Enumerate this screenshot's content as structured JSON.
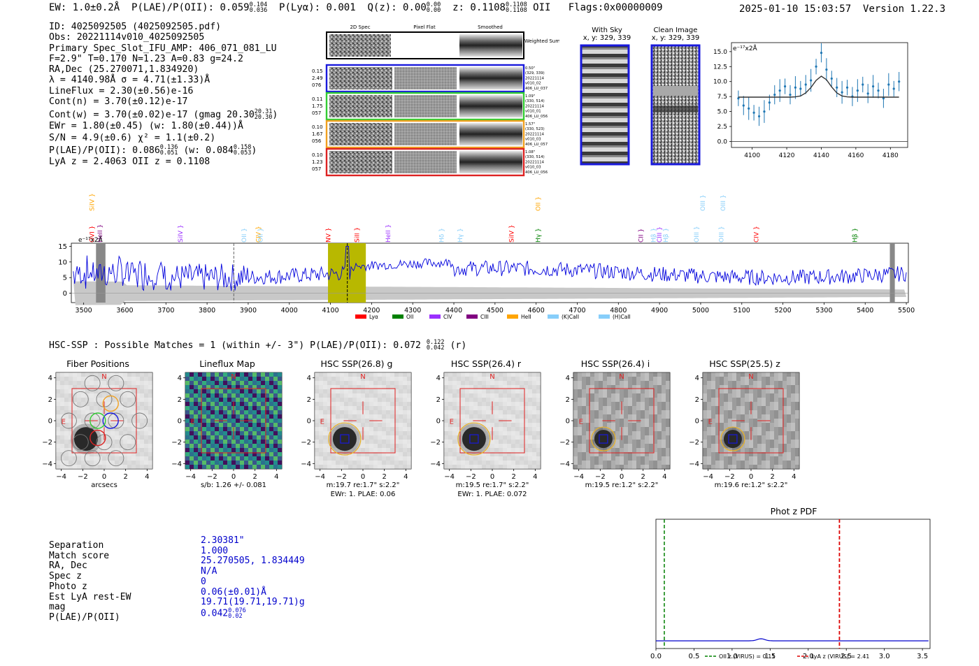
{
  "header": {
    "ew": "EW: 1.0±0.2Å",
    "plae": "P(LAE)/P(OII): 0.059",
    "plae_hi": "0.104",
    "plae_lo": "0.036",
    "plya": "P(Lyα): 0.001",
    "qz": "Q(z): 0.00",
    "qz_hi": "0.00",
    "qz_lo": "0.00",
    "z": "z: 0.1108",
    "z_hi": "0.1108",
    "z_lo": "0.1108",
    "z_line": "OII",
    "flags": "Flags:0x00000009",
    "datetime": "2025-01-10 15:03:57",
    "version": "Version 1.22.3"
  },
  "info": {
    "l1": "ID: 4025092505 (4025092505.pdf)",
    "l2": "Obs: 20221114v010_4025092505",
    "l3": "Primary Spec_Slot_IFU_AMP: 406_071_081_LU",
    "l4": "F=2.9\"  T=0.170  N=1.23  A=0.83  g=24.2",
    "l5": "RA,Dec (25.270071,1.834920)",
    "l6": "λ = 4140.98Å  σ = 4.71(±1.33)Å",
    "l7": "LineFlux = 2.30(±0.56)e-16",
    "l8": "Cont(n) = 3.70(±0.12)e-17",
    "l9": "Cont(w) = 3.70(±0.02)e-17 (gmag 20.30",
    "l9_hi": "20.31",
    "l9_lo": "20.30",
    "l10": "EWr = 1.80(±0.45) (w: 1.80(±0.44))Å",
    "l11": "S/N = 4.9(±0.6)  χ² = 1.1(±0.2)",
    "l12a": "P(LAE)/P(OII): 0.086",
    "l12a_hi": "0.136",
    "l12a_lo": "0.051",
    "l12b": "(w: 0.084",
    "l12b_hi": "0.158",
    "l12b_lo": "0.053",
    "l13": "LyA z = 2.4063  OII z = 0.1108"
  },
  "cutouts": {
    "col_2d": "2D Spec",
    "col_flat": "Pixel Flat",
    "col_smooth": "Smoothed",
    "weighted_sum": "Weighted Sum",
    "rows": [
      {
        "color": "#1a1adc",
        "left": [
          "0.15",
          "2.49",
          "076"
        ],
        "right": [
          "0.50\"",
          "(329, 339)",
          "20221114",
          "v010_02",
          "406_LU_037"
        ]
      },
      {
        "color": "#33cc33",
        "left": [
          "0.11",
          "1.75",
          "057"
        ],
        "right": [
          "1.09\"",
          "(330, 514)",
          "20221114",
          "v010_01",
          "406_LU_056"
        ]
      },
      {
        "color": "#f0a020",
        "left": [
          "0.10",
          "1.67",
          "056"
        ],
        "right": [
          "1.57\"",
          "(330, 523)",
          "20221114",
          "v010_03",
          "406_LU_057"
        ]
      },
      {
        "color": "#dd2222",
        "left": [
          "0.10",
          "1.23",
          "057"
        ],
        "right": [
          "1.08\"",
          "(330, 514)",
          "20221114",
          "v010_03",
          "406_LU_056"
        ]
      }
    ],
    "with_sky_title": "With Sky",
    "with_sky_xy": "x, y: 329, 339",
    "clean_title": "Clean Image",
    "clean_xy": "x, y: 329, 339"
  },
  "zoom_plot": {
    "unit": "e⁻¹⁷x2Å",
    "xticks": [
      "4100",
      "4120",
      "4140",
      "4160",
      "4180"
    ],
    "yticks": [
      "0.0",
      "2.5",
      "5.0",
      "7.5",
      "10.0",
      "12.5",
      "15.0"
    ]
  },
  "spectrum": {
    "unit": "e⁻¹⁷x2Å",
    "xticks": [
      "3500",
      "3600",
      "3700",
      "3800",
      "3900",
      "4000",
      "4100",
      "4200",
      "4300",
      "4400",
      "4500",
      "4600",
      "4700",
      "4800",
      "4900",
      "5000",
      "5100",
      "5200",
      "5300",
      "5400",
      "5500"
    ],
    "yticks": [
      "15",
      "10",
      "5",
      "0"
    ],
    "legend": [
      {
        "label": "Lyα",
        "color": "#ff0000"
      },
      {
        "label": "OII",
        "color": "#008000"
      },
      {
        "label": "CIV",
        "color": "#9b30ff"
      },
      {
        "label": "CIII",
        "color": "#800080"
      },
      {
        "label": "HeII",
        "color": "#ffa500"
      },
      {
        "label": "(K)CaII",
        "color": "#87cefa"
      },
      {
        "label": "(H)CaII",
        "color": "#87cefa"
      }
    ],
    "line_labels": [
      {
        "label": "SiIV",
        "color": "#ffa500",
        "row": 0
      },
      {
        "label": "OVI",
        "color": "#ff0000",
        "row": 1
      },
      {
        "label": "HeII",
        "color": "#800080",
        "row": 1
      },
      {
        "label": "SiIV",
        "color": "#9b30ff",
        "row": 1
      },
      {
        "label": "OII",
        "color": "#87cefa",
        "row": 1
      },
      {
        "label": "CIV",
        "color": "#ffa500",
        "row": 1
      },
      {
        "label": "OII",
        "color": "#87cefa",
        "row": 1
      },
      {
        "label": "NV",
        "color": "#ff0000",
        "row": 1
      },
      {
        "label": "SiII",
        "color": "#ff0000",
        "row": 1
      },
      {
        "label": "HeII",
        "color": "#9b30ff",
        "row": 1
      },
      {
        "label": "Hδ",
        "color": "#87cefa",
        "row": 1
      },
      {
        "label": "Hγ",
        "color": "#87cefa",
        "row": 1
      },
      {
        "label": "SiIV",
        "color": "#ff0000",
        "row": 1
      },
      {
        "label": "OII",
        "color": "#ffa500",
        "row": 0
      },
      {
        "label": "Hγ",
        "color": "#008000",
        "row": 1
      },
      {
        "label": "CII",
        "color": "#800080",
        "row": 1
      },
      {
        "label": "Hβ",
        "color": "#87cefa",
        "row": 1
      },
      {
        "label": "CIII",
        "color": "#9b30ff",
        "row": 1
      },
      {
        "label": "Hβ",
        "color": "#87cefa",
        "row": 1
      },
      {
        "label": "OIII",
        "color": "#87cefa",
        "row": 1
      },
      {
        "label": "OIII",
        "color": "#87cefa",
        "row": 0
      },
      {
        "label": "OIII",
        "color": "#87cefa",
        "row": 1
      },
      {
        "label": "OIII",
        "color": "#87cefa",
        "row": 0
      },
      {
        "label": "CIV",
        "color": "#ff0000",
        "row": 1
      },
      {
        "label": "Hβ",
        "color": "#008000",
        "row": 1
      }
    ]
  },
  "hsc": {
    "header": "HSC-SSP : Possible Matches = 1 (within +/- 3\")  P(LAE)/P(OII): 0.072",
    "header_hi": "0.122",
    "header_lo": "0.042",
    "header_band": "(r)",
    "ticks": [
      "4",
      "2",
      "0",
      "−2",
      "−4"
    ],
    "xticks": [
      "−4",
      "−2",
      "0",
      "2",
      "4"
    ],
    "panels": [
      {
        "title": "Fiber Positions",
        "cap1": "arcsecs",
        "cap2": ""
      },
      {
        "title": "Lineflux Map",
        "cap1": "s/b: 1.26 +/- 0.081",
        "cap2": ""
      },
      {
        "title": "HSC SSP(26.8) g",
        "cap1": "m:19.7  re:1.7\"  s:2.2\"",
        "cap2": "EWr: 1. PLAE: 0.06"
      },
      {
        "title": "HSC SSP(26.4) r",
        "cap1": "m:19.5  re:1.7\"  s:2.2\"",
        "cap2": "EWr: 1. PLAE: 0.072"
      },
      {
        "title": "HSC SSP(26.4) i",
        "cap1": "m:19.5  re:1.2\"  s:2.2\"",
        "cap2": ""
      },
      {
        "title": "HSC SSP(25.5) z",
        "cap1": "m:19.6  re:1.2\"  s:2.2\"",
        "cap2": ""
      }
    ],
    "north": "N",
    "east": "E"
  },
  "match": {
    "labels": [
      "Separation",
      "Match score",
      "RA, Dec",
      "Spec z",
      "Photo z",
      "Est LyA rest-EW",
      "mag",
      "P(LAE)/P(OII)"
    ],
    "values": [
      "2.30381\"",
      "1.000",
      "25.270505, 1.834449",
      "N/A",
      "0",
      "0.06(±0.01)Å",
      "19.71(19.71,19.71)g",
      "0.042"
    ],
    "plae_hi": "0.076",
    "plae_lo": "0.02"
  },
  "photz": {
    "title": "Phot z PDF",
    "xticks": [
      "0.0",
      "0.5",
      "1.0",
      "1.5",
      "2.0",
      "2.5",
      "3.0",
      "3.5"
    ],
    "legend_oii": "OII z (VIRUS) = 0.11",
    "legend_lya": "LyA z (VIRUS) = 2.41",
    "oii_z": 0.11,
    "lya_z": 2.41
  },
  "chart_data": [
    {
      "type": "line",
      "title": "Emission line zoom",
      "xlabel": "",
      "ylabel": "e-17 x2A",
      "x": [
        4092,
        4095,
        4098,
        4101,
        4104,
        4107,
        4110,
        4113,
        4116,
        4119,
        4122,
        4125,
        4128,
        4131,
        4134,
        4137,
        4140,
        4143,
        4146,
        4149,
        4152,
        4155,
        4158,
        4161,
        4164,
        4167,
        4170,
        4173,
        4176,
        4179,
        4182,
        4185
      ],
      "series": [
        {
          "name": "data",
          "values": [
            7.2,
            6.0,
            5.5,
            4.8,
            4.2,
            5.0,
            6.5,
            7.8,
            8.5,
            9.2,
            7.8,
            9.0,
            8.8,
            9.5,
            10.2,
            12.5,
            14.8,
            12.0,
            10.5,
            9.0,
            8.2,
            9.0,
            7.5,
            8.5,
            9.5,
            8.0,
            9.2,
            8.5,
            7.2,
            9.5,
            8.8,
            10.0
          ]
        },
        {
          "name": "model",
          "values": [
            7.4,
            7.4,
            7.4,
            7.4,
            7.4,
            7.4,
            7.4,
            7.4,
            7.4,
            7.4,
            7.4,
            7.45,
            7.6,
            8.1,
            9.0,
            10.2,
            10.9,
            10.3,
            9.1,
            8.1,
            7.6,
            7.45,
            7.4,
            7.4,
            7.4,
            7.4,
            7.4,
            7.4,
            7.4,
            7.4,
            7.4,
            7.4
          ]
        }
      ],
      "xlim": [
        4088,
        4190
      ],
      "ylim": [
        -1,
        16.5
      ]
    },
    {
      "type": "line",
      "title": "Full spectrum",
      "xlabel": "Wavelength (A)",
      "ylabel": "e-17 x2A",
      "xlim": [
        3470,
        5505
      ],
      "ylim": [
        -3,
        16
      ],
      "highlight_band": [
        4094,
        4186
      ],
      "dashed_lines": [
        3865,
        4141
      ],
      "series": [
        {
          "name": "flux",
          "approx_level": 7.5,
          "peak": [
            4141,
            16
          ]
        }
      ]
    },
    {
      "type": "line",
      "title": "Phot z PDF",
      "xlim": [
        0,
        3.6
      ],
      "series": [
        {
          "name": "pdf",
          "approx": "near-zero flat with small bump at 1.4"
        }
      ],
      "markers": [
        {
          "name": "OII z (VIRUS)",
          "value": 0.11
        },
        {
          "name": "LyA z (VIRUS)",
          "value": 2.41
        }
      ]
    }
  ]
}
